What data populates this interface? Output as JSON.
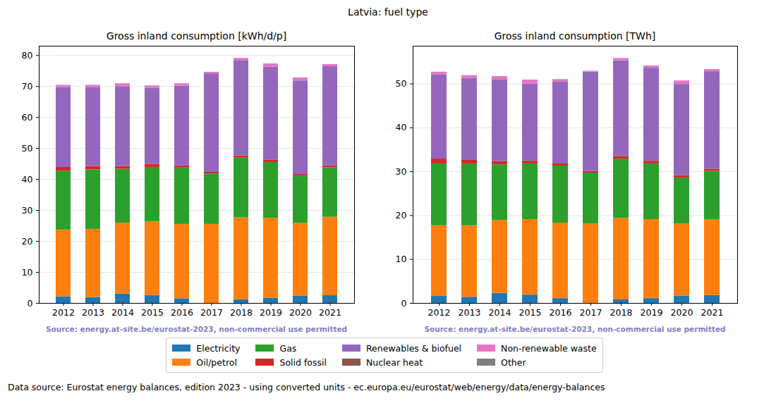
{
  "title": "Latvia: fuel type",
  "caption": "Data source: Eurostat energy balances, edition 2023 - using converted units - ec.europa.eu/eurostat/web/energy/data/energy-balances",
  "chart_data": [
    {
      "type": "bar",
      "stacked": true,
      "grid": true,
      "legend": "bottom",
      "title": "Gross inland consumption [kWh/d/p]",
      "annotations": [
        "Source: energy.at-site.be/eurostat-2023, non-commercial use permitted"
      ],
      "categories": [
        "2012",
        "2013",
        "2014",
        "2015",
        "2016",
        "2017",
        "2018",
        "2019",
        "2020",
        "2021"
      ],
      "series": [
        {
          "name": "Electricity",
          "color": "#1f77b4",
          "values": [
            2.1,
            1.9,
            3.0,
            2.6,
            1.5,
            0,
            1.2,
            1.7,
            2.3,
            2.5
          ]
        },
        {
          "name": "Oil/petrol",
          "color": "#ff7f0e",
          "values": [
            21.6,
            22.0,
            22.9,
            23.8,
            24.0,
            25.5,
            26.4,
            25.8,
            23.6,
            25.3
          ]
        },
        {
          "name": "Gas",
          "color": "#2ca02c",
          "values": [
            19.0,
            19.2,
            17.4,
            17.5,
            18.2,
            16.3,
            19.3,
            18.0,
            15.1,
            16.0
          ]
        },
        {
          "name": "Solid fossil",
          "color": "#d62728",
          "values": [
            1.2,
            1.1,
            0.9,
            1.0,
            0.7,
            0.5,
            0.7,
            0.7,
            0.6,
            0.6
          ]
        },
        {
          "name": "Renewables & biofuel",
          "color": "#9467bd",
          "values": [
            25.8,
            25.4,
            25.6,
            24.5,
            25.7,
            31.8,
            30.8,
            30.1,
            30.2,
            32.0
          ]
        },
        {
          "name": "Nuclear heat",
          "color": "#8c564b",
          "values": [
            0,
            0,
            0,
            0,
            0,
            0,
            0,
            0,
            0,
            0
          ]
        },
        {
          "name": "Non-renewable waste",
          "color": "#e377c2",
          "values": [
            0.7,
            0.8,
            1.1,
            0.8,
            0.8,
            0.5,
            0.7,
            1.0,
            1.0,
            0.7
          ]
        },
        {
          "name": "Other",
          "color": "#7f7f7f",
          "values": [
            0,
            0,
            0,
            0,
            0,
            0,
            0,
            0,
            0,
            0
          ]
        }
      ],
      "ylim": [
        0,
        83
      ],
      "yticks": [
        0,
        10,
        20,
        30,
        40,
        50,
        60,
        70,
        80
      ]
    },
    {
      "type": "bar",
      "stacked": true,
      "grid": true,
      "title": "Gross inland consumption [TWh]",
      "annotations": [
        "Source: energy.at-site.be/eurostat-2023, non-commercial use permitted"
      ],
      "categories": [
        "2012",
        "2013",
        "2014",
        "2015",
        "2016",
        "2017",
        "2018",
        "2019",
        "2020",
        "2021"
      ],
      "series": [
        {
          "name": "Electricity",
          "color": "#1f77b4",
          "values": [
            1.6,
            1.4,
            2.3,
            1.9,
            1.1,
            0,
            0.8,
            1.1,
            1.7,
            1.8
          ]
        },
        {
          "name": "Oil/petrol",
          "color": "#ff7f0e",
          "values": [
            16.1,
            16.3,
            16.6,
            17.2,
            17.2,
            18.1,
            18.6,
            18.0,
            16.4,
            17.3
          ]
        },
        {
          "name": "Gas",
          "color": "#2ca02c",
          "values": [
            14.1,
            14.1,
            12.7,
            12.7,
            13.0,
            11.6,
            13.5,
            12.7,
            10.5,
            11.0
          ]
        },
        {
          "name": "Solid fossil",
          "color": "#d62728",
          "values": [
            1.1,
            0.8,
            0.7,
            0.6,
            0.5,
            0.4,
            0.6,
            0.6,
            0.5,
            0.5
          ]
        },
        {
          "name": "Renewables & biofuel",
          "color": "#9467bd",
          "values": [
            19.2,
            18.7,
            18.6,
            17.6,
            18.6,
            22.6,
            21.8,
            21.2,
            20.8,
            22.2
          ]
        },
        {
          "name": "Nuclear heat",
          "color": "#8c564b",
          "values": [
            0,
            0,
            0,
            0,
            0,
            0,
            0,
            0,
            0,
            0
          ]
        },
        {
          "name": "Non-renewable waste",
          "color": "#e377c2",
          "values": [
            0.6,
            0.6,
            0.8,
            0.9,
            0.6,
            0.2,
            0.5,
            0.5,
            0.8,
            0.5
          ]
        },
        {
          "name": "Other",
          "color": "#7f7f7f",
          "values": [
            0,
            0,
            0,
            0,
            0,
            0,
            0,
            0,
            0,
            0
          ]
        }
      ],
      "ylim": [
        0,
        58.6
      ],
      "yticks": [
        0,
        10,
        20,
        30,
        40,
        50
      ]
    }
  ]
}
